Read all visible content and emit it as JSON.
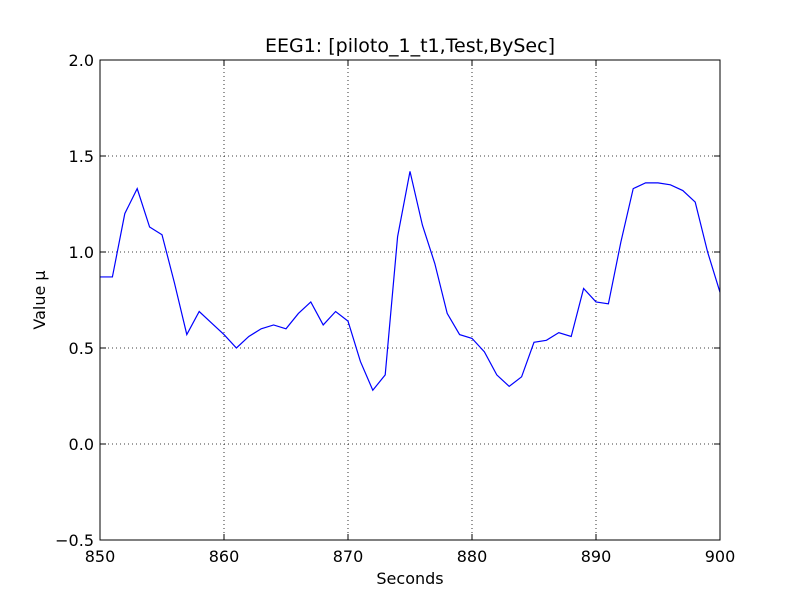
{
  "chart_data": {
    "type": "line",
    "title": "EEG1: [piloto_1_t1,Test,BySec]",
    "xlabel": "Seconds",
    "ylabel": "Value µ",
    "xlim": [
      850,
      900
    ],
    "ylim": [
      -0.5,
      2.0
    ],
    "grid": true,
    "x_ticks": [
      "850",
      "860",
      "870",
      "880",
      "890",
      "900"
    ],
    "y_ticks": [
      "−0.5",
      "0.0",
      "0.5",
      "1.0",
      "1.5",
      "2.0"
    ],
    "line_color": "#0000ff",
    "series": [
      {
        "x": [
          850,
          851,
          852,
          853,
          854,
          855,
          856,
          857,
          858,
          859,
          860,
          861,
          862,
          863,
          864,
          865,
          866,
          867,
          868,
          869,
          870,
          871,
          872,
          873,
          874,
          875,
          876,
          877,
          878,
          879,
          880,
          881,
          882,
          883,
          884,
          885,
          886,
          887,
          888,
          889,
          890,
          891,
          892,
          893,
          894,
          895,
          896,
          897,
          898,
          899,
          900
        ],
        "y": [
          0.87,
          0.87,
          1.2,
          1.33,
          1.13,
          1.09,
          0.84,
          0.57,
          0.69,
          0.63,
          0.57,
          0.5,
          0.56,
          0.6,
          0.62,
          0.6,
          0.68,
          0.74,
          0.62,
          0.69,
          0.64,
          0.43,
          0.28,
          0.36,
          1.08,
          1.42,
          1.14,
          0.94,
          0.68,
          0.57,
          0.55,
          0.48,
          0.36,
          0.3,
          0.35,
          0.53,
          0.54,
          0.58,
          0.56,
          0.81,
          0.74,
          0.73,
          1.05,
          1.33,
          1.36,
          1.36,
          1.35,
          1.32,
          1.26,
          1.0,
          0.79
        ]
      }
    ]
  }
}
